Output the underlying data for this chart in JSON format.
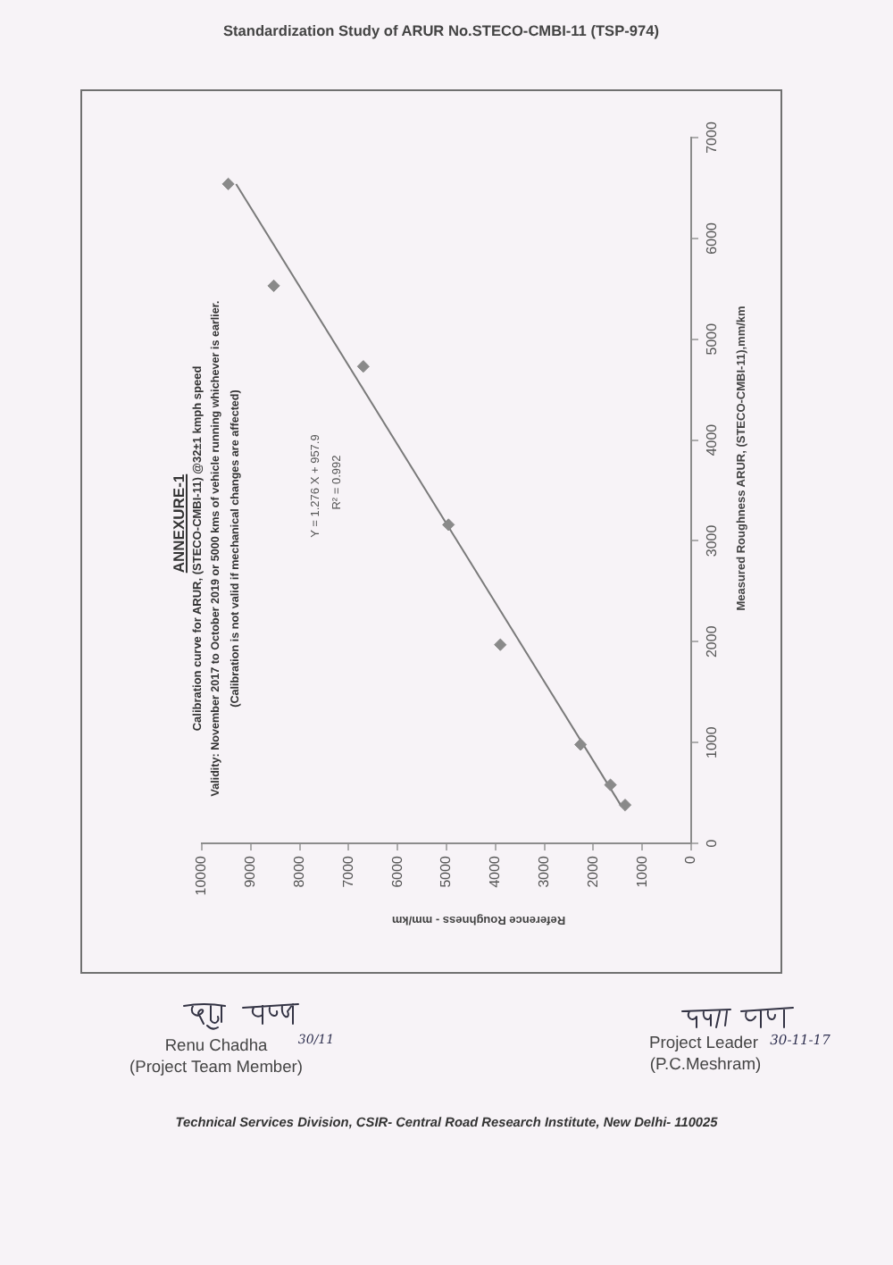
{
  "chart_data": {
    "type": "scatter",
    "title": "ANNEXURE-1",
    "subtitle": "Calibration curve for ARUR, (STECO-CMBI-11) @32±1 kmph speed",
    "xlabel": "Reference Roughness - mm/km",
    "ylabel": "Measured Roughness ARUR, (STECO-CMBI-11),mm/km",
    "annotations": [
      "Validity: November 2017 to October 2019 or 5000 kms of vehicle running whichever is earlier.",
      "(Calibration is not valid if mechanical changes are affected)",
      "Y = 1.276 X + 957.9",
      "R² = 0.992",
      "Standardization Study of ARUR No.STECO-CMBI-11 (TSP-974)",
      "30/11",
      "Renu Chadha",
      "(Project Team Member)",
      "Project Leader",
      "30-11-17",
      "(P.C.Meshram)",
      "Technical Services Division, CSIR- Central Road Research Institute, New Delhi- 110025"
    ],
    "series": [
      {
        "color": "#8a8a8a",
        "x": [
          1350,
          1650,
          2260,
          3900,
          4960,
          6700,
          8530,
          9460
        ],
        "values": [
          380,
          580,
          980,
          1970,
          3160,
          4730,
          5530,
          6540
        ]
      },
      {
        "type": "line",
        "color": "#7a7a7a",
        "marker": "none",
        "x": [
          1440,
          9300
        ],
        "values": [
          380,
          6540
        ]
      }
    ],
    "marker": "diamond",
    "line_style": "solid",
    "xlim": [
      10000,
      0
    ],
    "xticks": [
      10000,
      9000,
      8000,
      7000,
      6000,
      5000,
      4000,
      3000,
      2000,
      1000,
      0
    ],
    "ylim": [
      0,
      7000
    ],
    "yticks": [
      0,
      1000,
      2000,
      3000,
      4000,
      5000,
      6000,
      7000
    ]
  }
}
